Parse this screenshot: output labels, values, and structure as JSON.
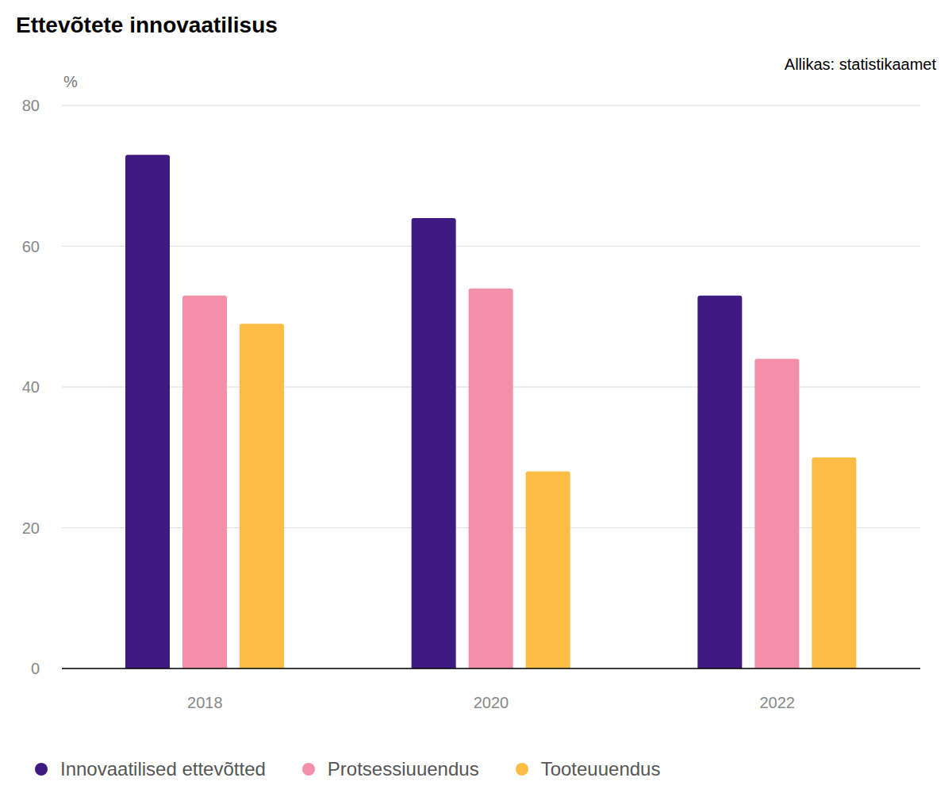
{
  "chart_data": {
    "type": "bar",
    "title": "Ettevõtete innovaatilisus",
    "annotations": [
      "Allikas: statistikaamet"
    ],
    "ylabel": "%",
    "categories": [
      "2018",
      "2020",
      "2022"
    ],
    "series": [
      {
        "name": "Innovaatilised ettevõtted",
        "color": "#3f1a82",
        "values": [
          73,
          64,
          53
        ]
      },
      {
        "name": "Protsessiuuendus",
        "color": "#f48fa9",
        "values": [
          53,
          54,
          44
        ]
      },
      {
        "name": "Tooteuuendus",
        "color": "#fcbc45",
        "values": [
          49,
          28,
          30
        ]
      }
    ],
    "ylim": [
      0,
      80
    ],
    "yticks": [
      0,
      20,
      40,
      60,
      80
    ],
    "grid": true,
    "legend": "bottom-left"
  }
}
